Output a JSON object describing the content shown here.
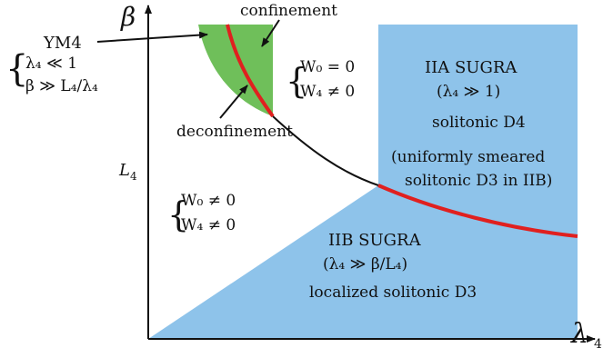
{
  "axes": {
    "x_label": "λ",
    "x_subscript": "4",
    "y_label": "β",
    "y_tick": "L",
    "y_tick_subscript": "4"
  },
  "ym4": {
    "title": "YM4",
    "cond1": "λ₄ ≪ 1",
    "cond2": "β ≫ L₄/λ₄"
  },
  "confinement": "confinement",
  "deconfinement": "deconfinement",
  "region_w0_zero": {
    "line1": "W₀ = 0",
    "line2": "W₄ ≠ 0"
  },
  "region_w0_nonzero": {
    "line1": "W₀ ≠ 0",
    "line2": "W₄ ≠ 0"
  },
  "iia": {
    "title": "IIA SUGRA",
    "cond": "(λ₄ ≫ 1)",
    "desc": "solitonic D4",
    "note1": "(uniformly smeared",
    "note2": "solitonic D3 in IIB)"
  },
  "iib": {
    "title": "IIB SUGRA",
    "cond": "(λ₄ ≫ β/L₄)",
    "desc": "localized solitonic D3"
  },
  "colors": {
    "blue_region": "#8ec3ea",
    "green_region": "#6fbf5a",
    "transition_line": "#e0201f",
    "curve": "#111111"
  }
}
